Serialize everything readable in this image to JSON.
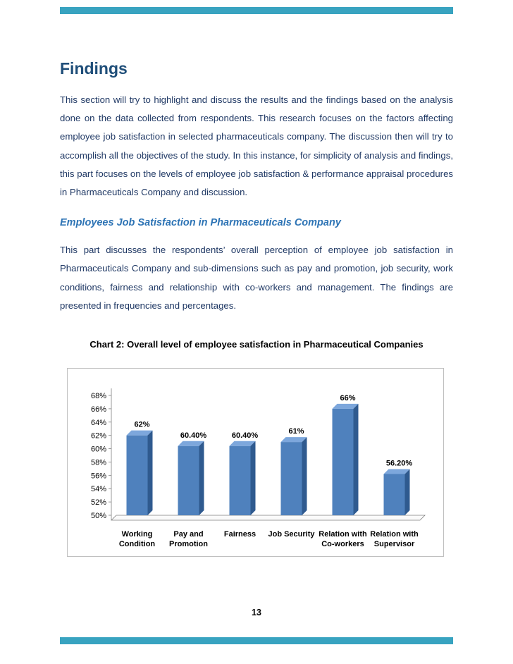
{
  "page": {
    "heading": "Findings",
    "paragraph1": "This section will try to highlight and discuss the results and the findings based on the analysis done on the data collected from respondents. This research focuses on the factors affecting employee job satisfaction in selected pharmaceuticals company. The discussion then will try to accomplish all the objectives of the study. In this instance, for simplicity of analysis and findings, this part focuses on the levels of employee job satisfaction & performance appraisal procedures in Pharmaceuticals Company and discussion.",
    "subheading": "Employees Job Satisfaction in Pharmaceuticals Company",
    "paragraph2": "This part discusses the respondents’ overall perception of employee job satisfaction in Pharmaceuticals Company and sub-dimensions such as pay and promotion, job security, work conditions, fairness and relationship with co-workers and management. The findings are presented in frequencies and percentages.",
    "chart_caption": "Chart 2: Overall level of employee satisfaction in Pharmaceutical Companies",
    "page_number": "13",
    "colors": {
      "accent_bar": "#38a3c0",
      "heading": "#1f4e79",
      "subheading": "#2e74b5",
      "body_text": "#1f3864"
    }
  },
  "chart_data": {
    "type": "bar",
    "style": "3d-column",
    "title": "",
    "xlabel": "",
    "ylabel": "",
    "categories": [
      "Working Condition",
      "Pay and Promotion",
      "Fairness",
      "Job Security",
      "Relation with Co-workers",
      "Relation with Supervisor"
    ],
    "category_lines": [
      [
        "Working",
        "Condition"
      ],
      [
        "Pay and",
        "Promotion"
      ],
      [
        "Fairness"
      ],
      [
        "Job Security"
      ],
      [
        "Relation with",
        "Co-workers"
      ],
      [
        "Relation with",
        "Supervisor"
      ]
    ],
    "values": [
      62,
      60.4,
      60.4,
      61,
      66,
      56.2
    ],
    "value_labels": [
      "62%",
      "60.40%",
      "60.40%",
      "61%",
      "66%",
      "56.20%"
    ],
    "ylim": [
      50,
      68
    ],
    "ytick_step": 2,
    "ytick_labels": [
      "50%",
      "52%",
      "54%",
      "56%",
      "58%",
      "60%",
      "62%",
      "64%",
      "66%",
      "68%"
    ],
    "grid": false,
    "legend": "none",
    "bar_color": "#4f81bd",
    "bar_top_color": "#7da7dc",
    "bar_side_color": "#2f5a8f"
  }
}
